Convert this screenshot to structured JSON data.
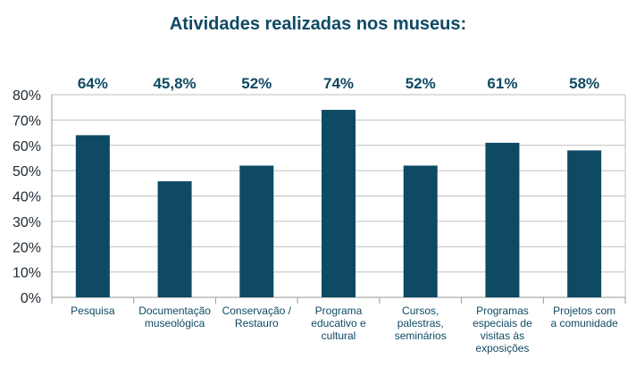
{
  "chart_data": {
    "type": "bar",
    "title": "Atividades realizadas nos museus:",
    "categories": [
      [
        "Pesquisa"
      ],
      [
        "Documentação",
        "museológica"
      ],
      [
        "Conservação /",
        "Restauro"
      ],
      [
        "Programa",
        "educativo e",
        "cultural"
      ],
      [
        "Cursos,",
        "palestras,",
        "seminários"
      ],
      [
        "Programas",
        "especiais de",
        "visitas às",
        "exposições"
      ],
      [
        "Projetos com",
        "a comunidade"
      ]
    ],
    "values": [
      64,
      45.8,
      52,
      74,
      52,
      61,
      58
    ],
    "data_labels": [
      "64%",
      "45,8%",
      "52%",
      "74%",
      "52%",
      "61%",
      "58%"
    ],
    "ylim": [
      0,
      80
    ],
    "yticks": [
      "0%",
      "10%",
      "20%",
      "30%",
      "40%",
      "50%",
      "60%",
      "70%",
      "80%"
    ],
    "grid": true,
    "bar_color": "#0e4a64",
    "text_color": "#0e4a64"
  }
}
